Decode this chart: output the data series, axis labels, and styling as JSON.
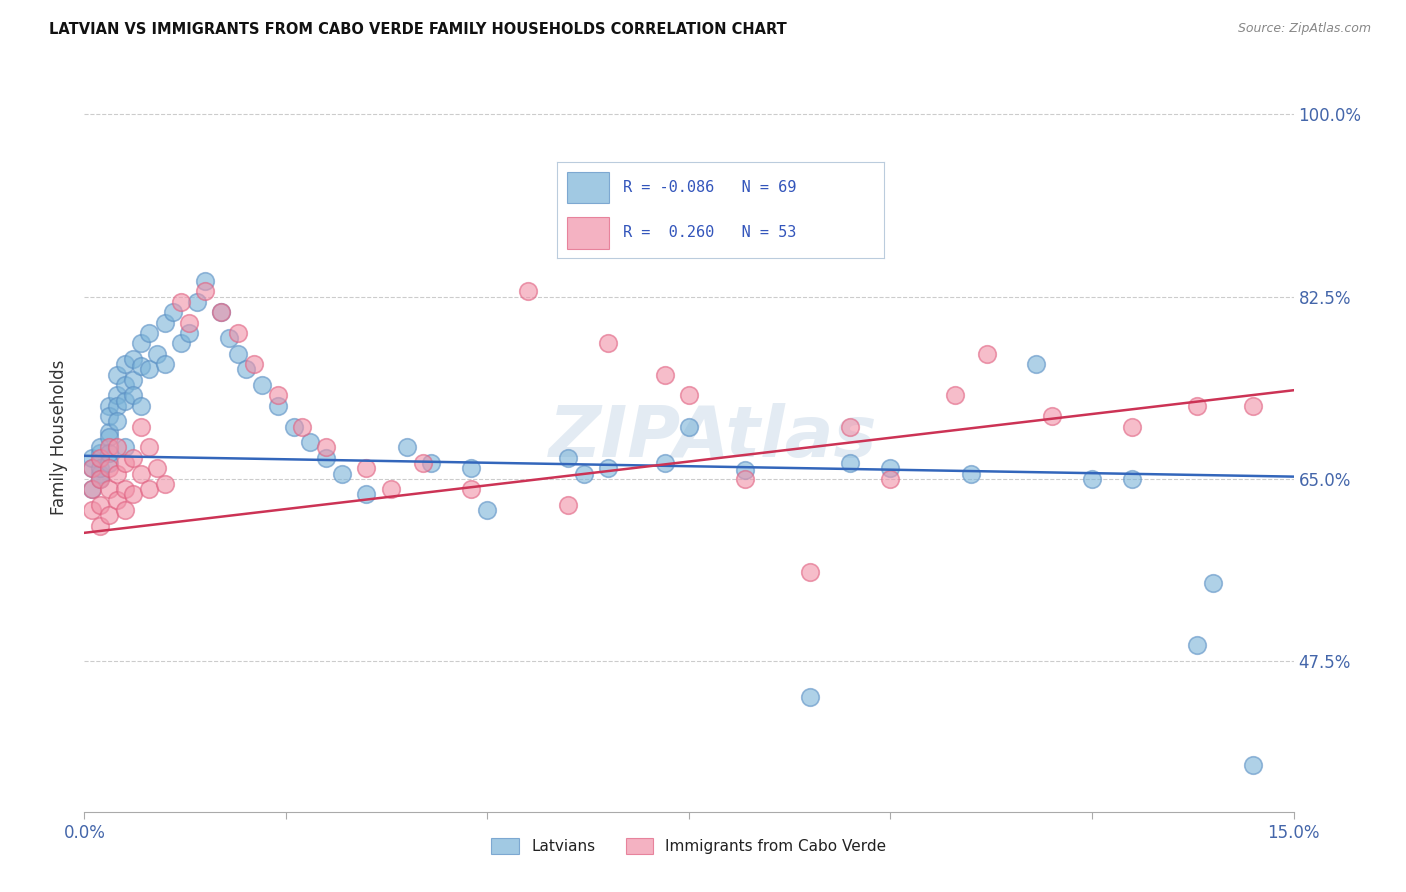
{
  "title": "LATVIAN VS IMMIGRANTS FROM CABO VERDE FAMILY HOUSEHOLDS CORRELATION CHART",
  "source": "Source: ZipAtlas.com",
  "ylabel": "Family Households",
  "xlim": [
    0.0,
    0.15
  ],
  "ylim": [
    0.33,
    1.05
  ],
  "yticks": [
    0.475,
    0.65,
    0.825,
    1.0
  ],
  "ytick_labels": [
    "47.5%",
    "65.0%",
    "82.5%",
    "100.0%"
  ],
  "xticks": [
    0.0,
    0.025,
    0.05,
    0.075,
    0.1,
    0.125,
    0.15
  ],
  "xtick_labels_bottom": [
    "0.0%",
    "",
    "",
    "",
    "",
    "",
    "15.0%"
  ],
  "latvians_color": "#7ab3d8",
  "cabo_verde_color": "#f092a8",
  "latvians_edge": "#5a8fc4",
  "cabo_verde_edge": "#e06080",
  "latvian_line_color": "#3366bb",
  "cabo_verde_line_color": "#cc3355",
  "legend_box_color": "#f0f4ff",
  "legend_border_color": "#bbccdd",
  "watermark": "ZIPAtlas",
  "watermark_color": "#c8d8e8",
  "legend_text_color": "#3355bb",
  "R_blue": -0.086,
  "R_pink": 0.26,
  "N_blue": 69,
  "N_pink": 53,
  "blue_line_y0": 0.672,
  "blue_line_y1": 0.652,
  "pink_line_y0": 0.598,
  "pink_line_y1": 0.735,
  "blue_x": [
    0.001,
    0.001,
    0.001,
    0.002,
    0.002,
    0.002,
    0.002,
    0.002,
    0.003,
    0.003,
    0.003,
    0.003,
    0.003,
    0.003,
    0.004,
    0.004,
    0.004,
    0.004,
    0.005,
    0.005,
    0.005,
    0.005,
    0.006,
    0.006,
    0.006,
    0.007,
    0.007,
    0.007,
    0.008,
    0.008,
    0.009,
    0.01,
    0.01,
    0.011,
    0.012,
    0.013,
    0.014,
    0.015,
    0.017,
    0.018,
    0.019,
    0.02,
    0.022,
    0.024,
    0.026,
    0.028,
    0.03,
    0.032,
    0.035,
    0.04,
    0.043,
    0.048,
    0.05,
    0.06,
    0.062,
    0.065,
    0.072,
    0.075,
    0.082,
    0.09,
    0.095,
    0.1,
    0.11,
    0.118,
    0.125,
    0.13,
    0.138,
    0.14,
    0.145
  ],
  "blue_y": [
    0.66,
    0.64,
    0.67,
    0.655,
    0.675,
    0.65,
    0.68,
    0.66,
    0.72,
    0.695,
    0.71,
    0.665,
    0.69,
    0.675,
    0.73,
    0.72,
    0.75,
    0.705,
    0.76,
    0.74,
    0.725,
    0.68,
    0.765,
    0.745,
    0.73,
    0.78,
    0.758,
    0.72,
    0.79,
    0.755,
    0.77,
    0.8,
    0.76,
    0.81,
    0.78,
    0.79,
    0.82,
    0.84,
    0.81,
    0.785,
    0.77,
    0.755,
    0.74,
    0.72,
    0.7,
    0.685,
    0.67,
    0.655,
    0.635,
    0.68,
    0.665,
    0.66,
    0.62,
    0.67,
    0.655,
    0.66,
    0.665,
    0.7,
    0.658,
    0.44,
    0.665,
    0.66,
    0.655,
    0.76,
    0.65,
    0.65,
    0.49,
    0.55,
    0.375
  ],
  "pink_x": [
    0.001,
    0.001,
    0.001,
    0.002,
    0.002,
    0.002,
    0.002,
    0.003,
    0.003,
    0.003,
    0.003,
    0.004,
    0.004,
    0.004,
    0.005,
    0.005,
    0.005,
    0.006,
    0.006,
    0.007,
    0.007,
    0.008,
    0.008,
    0.009,
    0.01,
    0.012,
    0.013,
    0.015,
    0.017,
    0.019,
    0.021,
    0.024,
    0.027,
    0.03,
    0.035,
    0.038,
    0.042,
    0.048,
    0.055,
    0.06,
    0.065,
    0.072,
    0.075,
    0.082,
    0.09,
    0.095,
    0.1,
    0.108,
    0.112,
    0.12,
    0.13,
    0.138,
    0.145
  ],
  "pink_y": [
    0.62,
    0.64,
    0.66,
    0.625,
    0.65,
    0.67,
    0.605,
    0.64,
    0.66,
    0.68,
    0.615,
    0.655,
    0.63,
    0.68,
    0.665,
    0.64,
    0.62,
    0.67,
    0.635,
    0.7,
    0.655,
    0.68,
    0.64,
    0.66,
    0.645,
    0.82,
    0.8,
    0.83,
    0.81,
    0.79,
    0.76,
    0.73,
    0.7,
    0.68,
    0.66,
    0.64,
    0.665,
    0.64,
    0.83,
    0.625,
    0.78,
    0.75,
    0.73,
    0.65,
    0.56,
    0.7,
    0.65,
    0.73,
    0.77,
    0.71,
    0.7,
    0.72,
    0.72
  ]
}
